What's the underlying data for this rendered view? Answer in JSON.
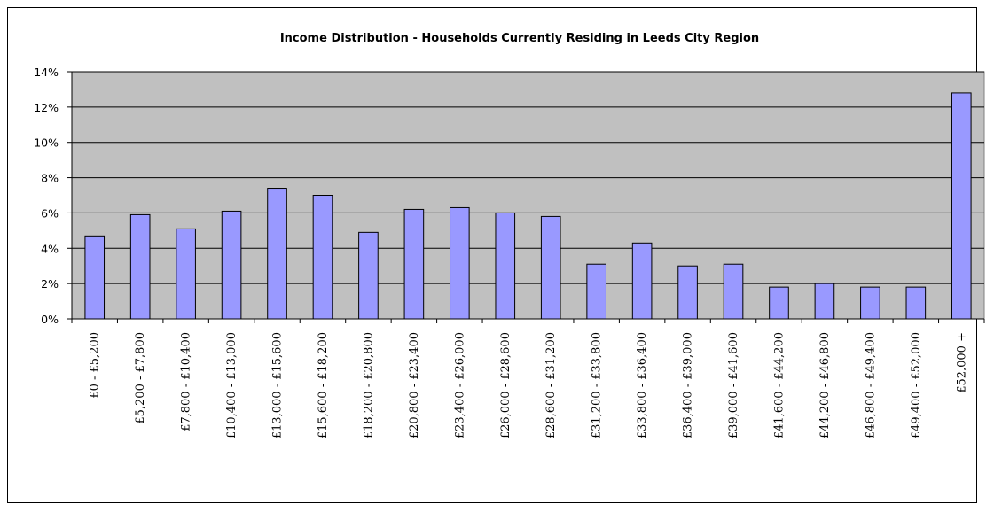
{
  "chart_data": {
    "type": "bar",
    "title": "Income Distribution - Households Currently Residing in Leeds City Region",
    "xlabel": "",
    "ylabel": "",
    "ylim": [
      0,
      14
    ],
    "yticks": [
      "0%",
      "2%",
      "4%",
      "6%",
      "8%",
      "10%",
      "12%",
      "14%"
    ],
    "grid": true,
    "legend": "none",
    "colors": {
      "bar_fill": "#9999ff",
      "bar_stroke": "#000000",
      "plot_bg": "#c0c0c0",
      "gridline": "#000000"
    },
    "categories": [
      "£0 - £5,200",
      "£5,200 - £7,800",
      "£7,800 - £10,400",
      "£10,400 - £13,000",
      "£13,000 - £15,600",
      "£15,600 - £18,200",
      "£18,200 - £20,800",
      "£20,800 - £23,400",
      "£23,400 - £26,000",
      "£26,000 - £28,600",
      "£28,600 - £31,200",
      "£31,200 - £33,800",
      "£33,800 - £36,400",
      "£36,400 - £39,000",
      "£39,000 - £41,600",
      "£41,600 - £44,200",
      "£44,200 - £46,800",
      "£46,800 - £49,400",
      "£49,400 - £52,000",
      "£52,000 +"
    ],
    "values": [
      4.7,
      5.9,
      5.1,
      6.1,
      7.4,
      7.0,
      4.9,
      6.2,
      6.3,
      6.0,
      5.8,
      3.1,
      4.3,
      3.0,
      3.1,
      1.8,
      2.0,
      1.8,
      1.8,
      12.8
    ]
  }
}
